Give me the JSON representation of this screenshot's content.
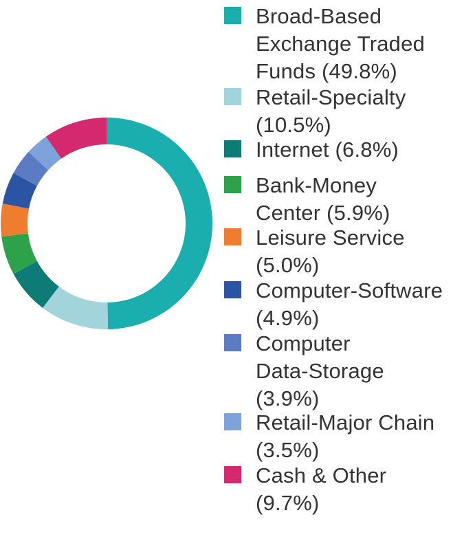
{
  "chart_data": {
    "type": "pie",
    "variant": "donut",
    "title": "",
    "legend_position": "right",
    "slices": [
      {
        "label": "Broad-Based Exchange Traded Funds",
        "value": 49.8,
        "legend_text": "Broad-Based\nExchange Traded\nFunds (49.8%)",
        "color": "#1aaeae"
      },
      {
        "label": "Retail-Specialty",
        "value": 10.5,
        "legend_text": "Retail-Specialty\n(10.5%)",
        "color": "#a2d4dc"
      },
      {
        "label": "Internet",
        "value": 6.8,
        "legend_text": "Internet (6.8%)",
        "color": "#0e7b76"
      },
      {
        "label": "Bank-Money Center",
        "value": 5.9,
        "legend_text": "Bank-Money\nCenter (5.9%)",
        "color": "#2ea24a"
      },
      {
        "label": "Leisure Service",
        "value": 5.0,
        "legend_text": "Leisure Service\n(5.0%)",
        "color": "#ef7d30"
      },
      {
        "label": "Computer-Software",
        "value": 4.9,
        "legend_text": "Computer-Software\n(4.9%)",
        "color": "#2c54a4"
      },
      {
        "label": "Computer Data-Storage",
        "value": 3.9,
        "legend_text": "Computer\nData-Storage\n(3.9%)",
        "color": "#5b7bc2"
      },
      {
        "label": "Retail-Major Chain",
        "value": 3.5,
        "legend_text": "Retail-Major Chain\n(3.5%)",
        "color": "#7ea3da"
      },
      {
        "label": "Cash & Other",
        "value": 9.7,
        "legend_text": "Cash & Other\n(9.7%)",
        "color": "#d4296e"
      }
    ]
  }
}
